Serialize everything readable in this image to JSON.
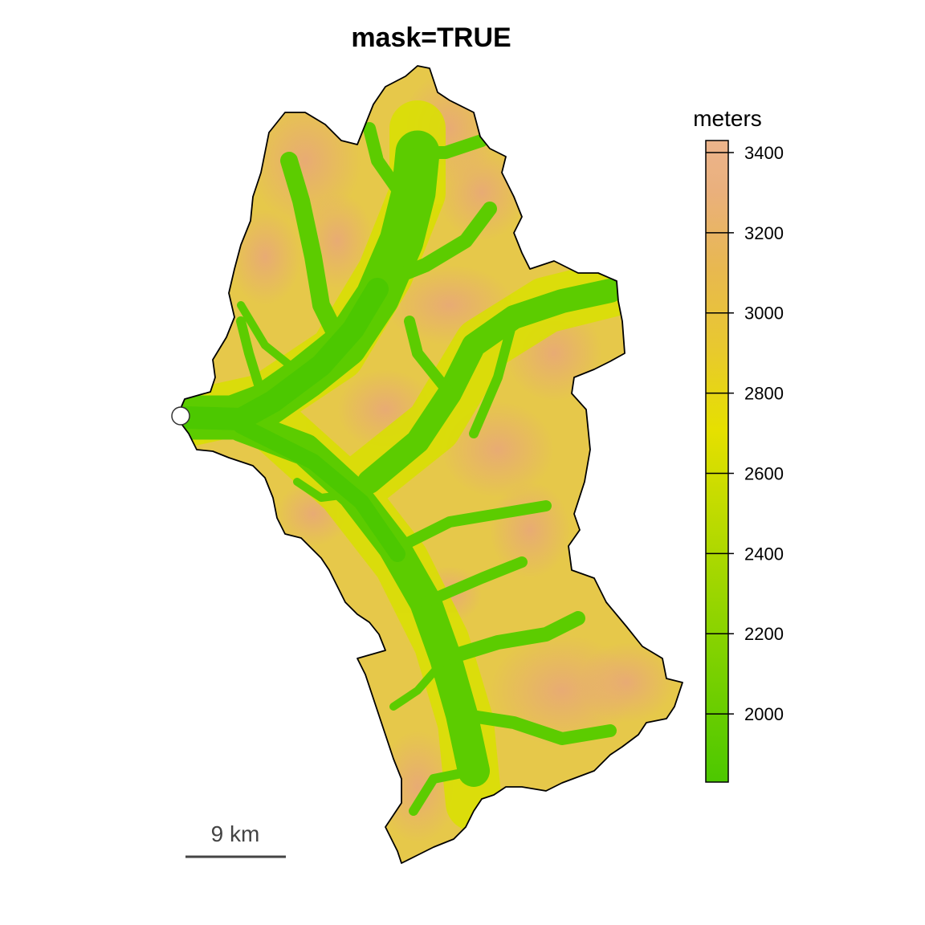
{
  "title": "mask=TRUE",
  "legend": {
    "title": "meters",
    "ticks": [
      {
        "value": 3400,
        "label": "3400"
      },
      {
        "value": 3200,
        "label": "3200"
      },
      {
        "value": 3000,
        "label": "3000"
      },
      {
        "value": 2800,
        "label": "2800"
      },
      {
        "value": 2600,
        "label": "2600"
      },
      {
        "value": 2400,
        "label": "2400"
      },
      {
        "value": 2200,
        "label": "2200"
      },
      {
        "value": 2000,
        "label": "2000"
      }
    ],
    "range": [
      1830,
      3430
    ],
    "colors": [
      "#4cc800",
      "#8ed400",
      "#c8dc00",
      "#e6e000",
      "#e8c800",
      "#e8b850",
      "#eab080",
      "#ecb48c"
    ]
  },
  "scale_bar": {
    "label": "9 km"
  },
  "colors": {
    "valley": "#4cc800",
    "mid": "#e4dc00",
    "ridge": "#e8b07a",
    "outline": "#000000"
  }
}
